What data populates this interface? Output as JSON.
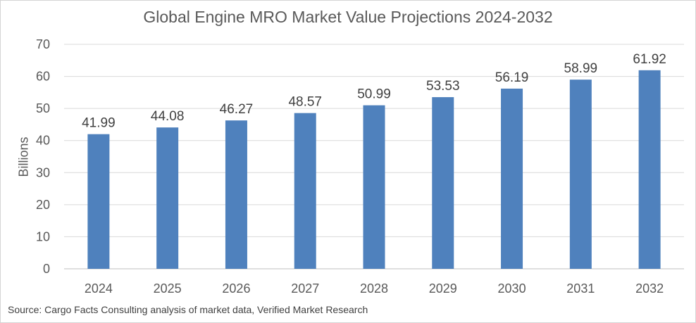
{
  "chart_data": {
    "type": "bar",
    "title": "Global Engine MRO Market Value Projections 2024-2032",
    "xlabel": "",
    "ylabel": "Billions",
    "categories": [
      "2024",
      "2025",
      "2026",
      "2027",
      "2028",
      "2029",
      "2030",
      "2031",
      "2032"
    ],
    "values": [
      41.99,
      44.08,
      46.27,
      48.57,
      50.99,
      53.53,
      56.19,
      58.99,
      61.92
    ],
    "ylim": [
      0,
      70
    ],
    "yticks": [
      0,
      10,
      20,
      30,
      40,
      50,
      60,
      70
    ],
    "grid": true,
    "legend": "none",
    "bar_color": "#4f81bd",
    "source": "Source: Cargo Facts Consulting analysis of market data, Verified Market Research"
  }
}
